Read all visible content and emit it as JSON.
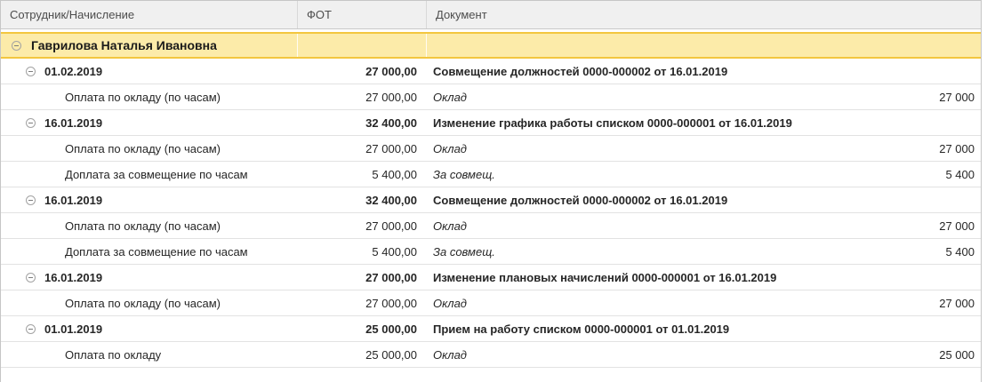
{
  "colors": {
    "header_bg": "#f0f0f0",
    "header_text": "#4d4d4d",
    "header_border": "#c9c9c9",
    "frame_border": "#c6c6c6",
    "group_row_bg": "#fceba9",
    "group_row_border": "#f3c63f",
    "row_separator": "#e2e2e2"
  },
  "icons": {
    "collapse": "minus-circle"
  },
  "table": {
    "columns": [
      {
        "label": "Сотрудник/Начисление"
      },
      {
        "label": "ФОТ"
      },
      {
        "label": "Документ"
      }
    ],
    "group": {
      "label": "Гаврилова Наталья Ивановна",
      "fot": "",
      "doc": ""
    },
    "rows": [
      {
        "type": "date",
        "label": "01.02.2019",
        "fot": "27 000,00",
        "doc": "Совмещение должностей 0000-000002 от 16.01.2019",
        "amount": ""
      },
      {
        "type": "accrual",
        "label": "Оплата по окладу (по часам)",
        "fot": "27 000,00",
        "doc": "Оклад",
        "amount": "27 000"
      },
      {
        "type": "date",
        "label": "16.01.2019",
        "fot": "32 400,00",
        "doc": "Изменение графика работы списком 0000-000001 от 16.01.2019",
        "amount": ""
      },
      {
        "type": "accrual",
        "label": "Оплата по окладу (по часам)",
        "fot": "27 000,00",
        "doc": "Оклад",
        "amount": "27 000"
      },
      {
        "type": "accrual",
        "label": "Доплата за совмещение по часам",
        "fot": "5 400,00",
        "doc": "За совмещ.",
        "amount": "5 400"
      },
      {
        "type": "date",
        "label": "16.01.2019",
        "fot": "32 400,00",
        "doc": "Совмещение должностей 0000-000002 от 16.01.2019",
        "amount": ""
      },
      {
        "type": "accrual",
        "label": "Оплата по окладу (по часам)",
        "fot": "27 000,00",
        "doc": "Оклад",
        "amount": "27 000"
      },
      {
        "type": "accrual",
        "label": "Доплата за совмещение по часам",
        "fot": "5 400,00",
        "doc": "За совмещ.",
        "amount": "5 400"
      },
      {
        "type": "date",
        "label": "16.01.2019",
        "fot": "27 000,00",
        "doc": "Изменение плановых начислений 0000-000001 от 16.01.2019",
        "amount": ""
      },
      {
        "type": "accrual",
        "label": "Оплата по окладу (по часам)",
        "fot": "27 000,00",
        "doc": "Оклад",
        "amount": "27 000"
      },
      {
        "type": "date",
        "label": "01.01.2019",
        "fot": "25 000,00",
        "doc": "Прием на работу списком 0000-000001 от 01.01.2019",
        "amount": ""
      },
      {
        "type": "accrual",
        "label": "Оплата по окладу",
        "fot": "25 000,00",
        "doc": "Оклад",
        "amount": "25 000"
      }
    ]
  }
}
